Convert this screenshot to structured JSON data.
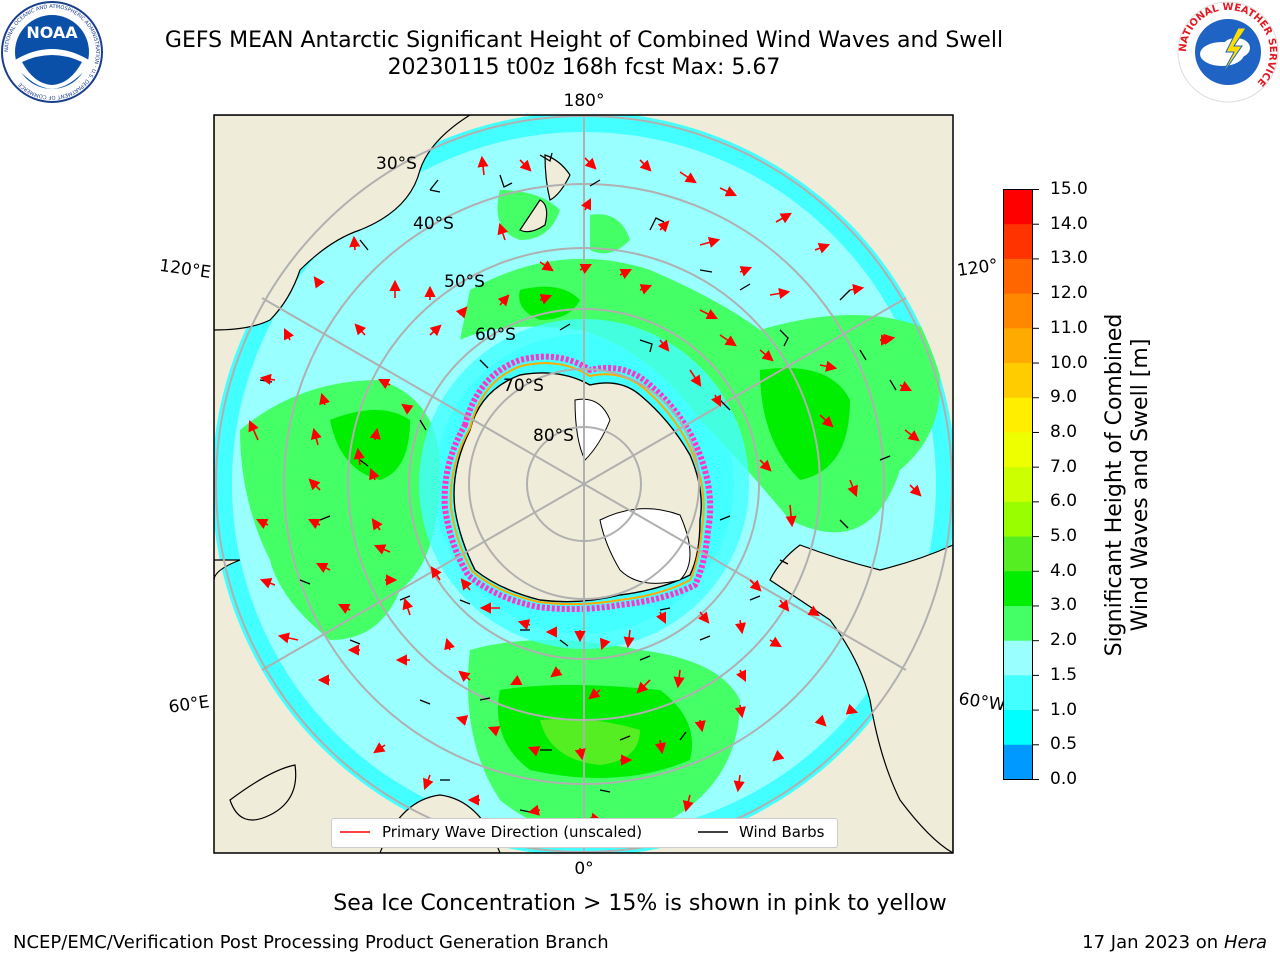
{
  "header": {
    "title_line1": "GEFS MEAN Antarctic Significant Height of Combined Wind Waves and Swell",
    "title_line2": "20230115 t00z 168h fcst   Max: 5.67"
  },
  "logos": {
    "left_text": "NOAA",
    "left_ring_text": "NATIONAL OCEANIC AND ATMOSPHERIC ADMINISTRATION · U.S. DEPARTMENT OF COMMERCE",
    "right_ring_text": "NATIONAL WEATHER SERVICE"
  },
  "map": {
    "longitude_labels": {
      "top": "180°",
      "bottom": "0°",
      "upper_left": "120°E",
      "lower_left": "60°E",
      "upper_right": "120°",
      "lower_right": "60°W"
    },
    "latitude_labels": [
      "30°S",
      "40°S",
      "50°S",
      "60°S",
      "70°S",
      "80°S"
    ],
    "colors": {
      "land": "#efedd9",
      "ice_shelf": "#ffffff",
      "sea_ice_edge": "#ff33cc",
      "wave_arrow": "#ff0000",
      "wind_barb": "#000000",
      "grid": "#b0b0b0"
    }
  },
  "colorbar": {
    "label_line1": "Significant Height of Combined",
    "label_line2": "Wind Waves and Swell [m]",
    "ticks": [
      "15.0",
      "14.0",
      "13.0",
      "12.0",
      "11.0",
      "10.0",
      "9.0",
      "8.0",
      "7.0",
      "6.0",
      "5.0",
      "4.0",
      "3.0",
      "2.0",
      "1.5",
      "1.0",
      "0.5",
      "0.0"
    ],
    "colors": [
      "#ff0000",
      "#ff3300",
      "#ff6600",
      "#ff8800",
      "#ffaa00",
      "#ffcc00",
      "#ffee00",
      "#eeff00",
      "#ccff00",
      "#99ff00",
      "#55ee22",
      "#00ee00",
      "#44ff66",
      "#99ffff",
      "#44ffff",
      "#00ffff",
      "#0099ff",
      "#0000ff"
    ]
  },
  "legend": {
    "wave_label": "Primary Wave Direction (unscaled)",
    "wind_label": "Wind Barbs"
  },
  "footer": {
    "sea_ice_note": "Sea Ice Concentration > 15% is shown in pink to yellow",
    "branch": "NCEP/EMC/Verification Post Processing Product Generation Branch",
    "date_prefix": "17 Jan 2023 on ",
    "machine": "Hera"
  }
}
